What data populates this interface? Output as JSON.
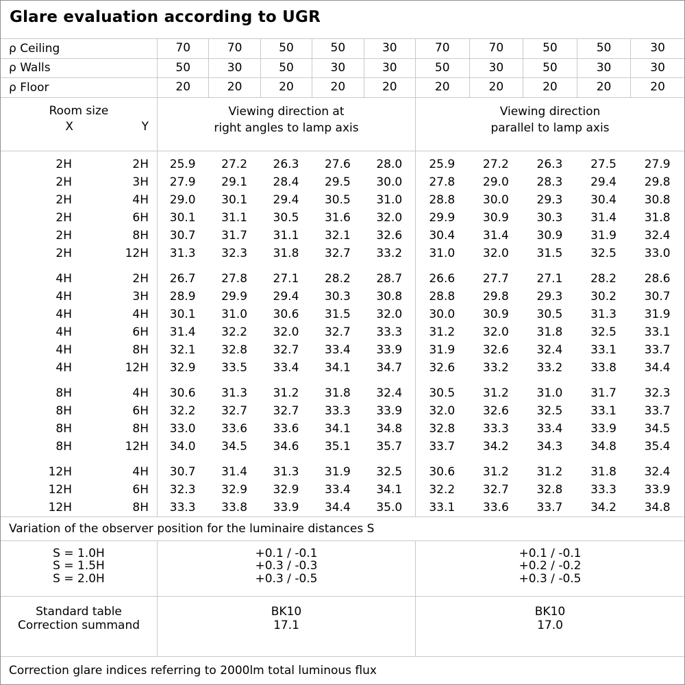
{
  "title": "Glare evaluation according to UGR",
  "reflectance_header": {
    "rows": [
      {
        "label": "ρ Ceiling",
        "values": [
          "70",
          "70",
          "50",
          "50",
          "30",
          "70",
          "70",
          "50",
          "50",
          "30"
        ]
      },
      {
        "label": "ρ Walls",
        "values": [
          "50",
          "30",
          "50",
          "30",
          "30",
          "50",
          "30",
          "50",
          "30",
          "30"
        ]
      },
      {
        "label": "ρ Floor",
        "values": [
          "20",
          "20",
          "20",
          "20",
          "20",
          "20",
          "20",
          "20",
          "20",
          "20"
        ]
      }
    ]
  },
  "column_header": {
    "room_size_label": "Room size",
    "x_label": "X",
    "y_label": "Y",
    "group_right_angles": "Viewing direction at\nright angles to lamp axis",
    "group_parallel": "Viewing direction\nparallel to lamp axis"
  },
  "ugr_table": {
    "blocks": [
      {
        "rows": [
          {
            "x": "2H",
            "y": "2H",
            "values": [
              "25.9",
              "27.2",
              "26.3",
              "27.6",
              "28.0",
              "25.9",
              "27.2",
              "26.3",
              "27.5",
              "27.9"
            ]
          },
          {
            "x": "2H",
            "y": "3H",
            "values": [
              "27.9",
              "29.1",
              "28.4",
              "29.5",
              "30.0",
              "27.8",
              "29.0",
              "28.3",
              "29.4",
              "29.8"
            ]
          },
          {
            "x": "2H",
            "y": "4H",
            "values": [
              "29.0",
              "30.1",
              "29.4",
              "30.5",
              "31.0",
              "28.8",
              "30.0",
              "29.3",
              "30.4",
              "30.8"
            ]
          },
          {
            "x": "2H",
            "y": "6H",
            "values": [
              "30.1",
              "31.1",
              "30.5",
              "31.6",
              "32.0",
              "29.9",
              "30.9",
              "30.3",
              "31.4",
              "31.8"
            ]
          },
          {
            "x": "2H",
            "y": "8H",
            "values": [
              "30.7",
              "31.7",
              "31.1",
              "32.1",
              "32.6",
              "30.4",
              "31.4",
              "30.9",
              "31.9",
              "32.4"
            ]
          },
          {
            "x": "2H",
            "y": "12H",
            "values": [
              "31.3",
              "32.3",
              "31.8",
              "32.7",
              "33.2",
              "31.0",
              "32.0",
              "31.5",
              "32.5",
              "33.0"
            ]
          }
        ]
      },
      {
        "rows": [
          {
            "x": "4H",
            "y": "2H",
            "values": [
              "26.7",
              "27.8",
              "27.1",
              "28.2",
              "28.7",
              "26.6",
              "27.7",
              "27.1",
              "28.2",
              "28.6"
            ]
          },
          {
            "x": "4H",
            "y": "3H",
            "values": [
              "28.9",
              "29.9",
              "29.4",
              "30.3",
              "30.8",
              "28.8",
              "29.8",
              "29.3",
              "30.2",
              "30.7"
            ]
          },
          {
            "x": "4H",
            "y": "4H",
            "values": [
              "30.1",
              "31.0",
              "30.6",
              "31.5",
              "32.0",
              "30.0",
              "30.9",
              "30.5",
              "31.3",
              "31.9"
            ]
          },
          {
            "x": "4H",
            "y": "6H",
            "values": [
              "31.4",
              "32.2",
              "32.0",
              "32.7",
              "33.3",
              "31.2",
              "32.0",
              "31.8",
              "32.5",
              "33.1"
            ]
          },
          {
            "x": "4H",
            "y": "8H",
            "values": [
              "32.1",
              "32.8",
              "32.7",
              "33.4",
              "33.9",
              "31.9",
              "32.6",
              "32.4",
              "33.1",
              "33.7"
            ]
          },
          {
            "x": "4H",
            "y": "12H",
            "values": [
              "32.9",
              "33.5",
              "33.4",
              "34.1",
              "34.7",
              "32.6",
              "33.2",
              "33.2",
              "33.8",
              "34.4"
            ]
          }
        ]
      },
      {
        "rows": [
          {
            "x": "8H",
            "y": "4H",
            "values": [
              "30.6",
              "31.3",
              "31.2",
              "31.8",
              "32.4",
              "30.5",
              "31.2",
              "31.0",
              "31.7",
              "32.3"
            ]
          },
          {
            "x": "8H",
            "y": "6H",
            "values": [
              "32.2",
              "32.7",
              "32.7",
              "33.3",
              "33.9",
              "32.0",
              "32.6",
              "32.5",
              "33.1",
              "33.7"
            ]
          },
          {
            "x": "8H",
            "y": "8H",
            "values": [
              "33.0",
              "33.6",
              "33.6",
              "34.1",
              "34.8",
              "32.8",
              "33.3",
              "33.4",
              "33.9",
              "34.5"
            ]
          },
          {
            "x": "8H",
            "y": "12H",
            "values": [
              "34.0",
              "34.5",
              "34.6",
              "35.1",
              "35.7",
              "33.7",
              "34.2",
              "34.3",
              "34.8",
              "35.4"
            ]
          }
        ]
      },
      {
        "rows": [
          {
            "x": "12H",
            "y": "4H",
            "values": [
              "30.7",
              "31.4",
              "31.3",
              "31.9",
              "32.5",
              "30.6",
              "31.2",
              "31.2",
              "31.8",
              "32.4"
            ]
          },
          {
            "x": "12H",
            "y": "6H",
            "values": [
              "32.3",
              "32.9",
              "32.9",
              "33.4",
              "34.1",
              "32.2",
              "32.7",
              "32.8",
              "33.3",
              "33.9"
            ]
          },
          {
            "x": "12H",
            "y": "8H",
            "values": [
              "33.3",
              "33.8",
              "33.9",
              "34.4",
              "35.0",
              "33.1",
              "33.6",
              "33.7",
              "34.2",
              "34.8"
            ]
          }
        ]
      }
    ]
  },
  "variation_note": "Variation of the observer position for the luminaire distances S",
  "observer_variation": {
    "rows": [
      {
        "label": "S = 1.0H",
        "right_angles": "+0.1 / -0.1",
        "parallel": "+0.1 / -0.1"
      },
      {
        "label": "S = 1.5H",
        "right_angles": "+0.3 / -0.3",
        "parallel": "+0.2 / -0.2"
      },
      {
        "label": "S = 2.0H",
        "right_angles": "+0.3 / -0.5",
        "parallel": "+0.3 / -0.5"
      }
    ]
  },
  "summary": {
    "standard_table_label": "Standard table",
    "correction_summand_label": "Correction summand",
    "standard_table": {
      "right_angles": "BK10",
      "parallel": "BK10"
    },
    "correction_summand": {
      "right_angles": "17.1",
      "parallel": "17.0"
    }
  },
  "footer_note": "Correction glare indices referring to 2000lm total luminous flux"
}
